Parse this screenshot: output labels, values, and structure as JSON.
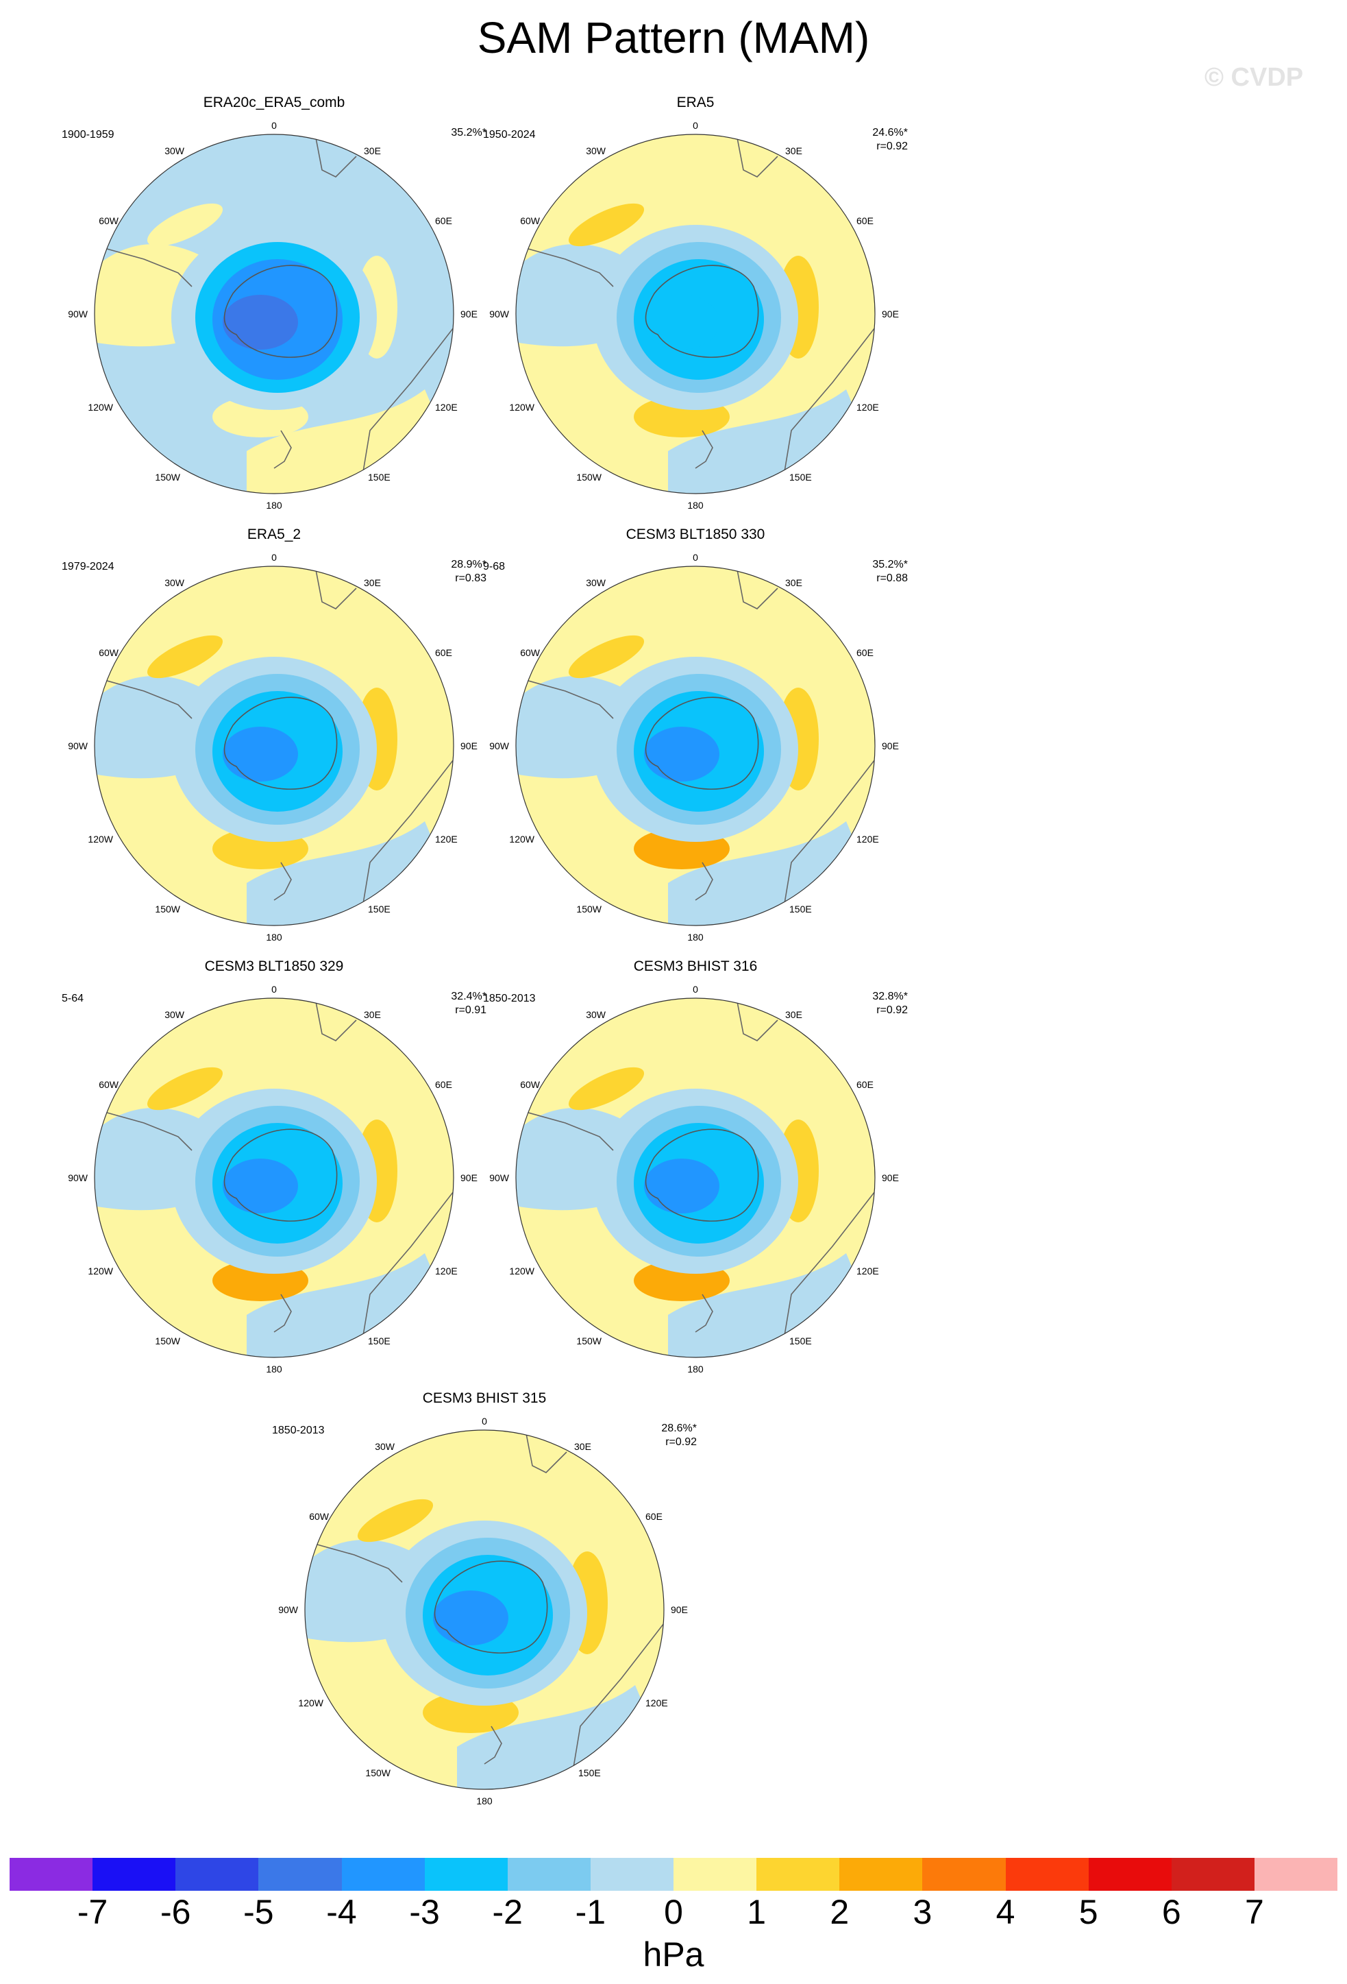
{
  "title": "SAM Pattern (MAM)",
  "watermark": "© CVDP",
  "colors": {
    "ocean_map_neg1": "#b4dcf0",
    "neutral_pos0": "#fdf6a2"
  },
  "panels": [
    {
      "title": "ERA20c_ERA5_comb",
      "period": "1900-1959",
      "pct": "35.2%*",
      "r": ""
    },
    {
      "title": "ERA5",
      "period": "1950-2024",
      "pct": "24.6%*",
      "r": "r=0.92"
    },
    {
      "title": "ERA5_2",
      "period": "1979-2024",
      "pct": "28.9%*",
      "r": "r=0.83"
    },
    {
      "title": "CESM3 BLT1850 330",
      "period": "9-68",
      "pct": "35.2%*",
      "r": "r=0.88"
    },
    {
      "title": "CESM3 BLT1850 329",
      "period": "5-64",
      "pct": "32.4%*",
      "r": "r=0.91"
    },
    {
      "title": "CESM3 BHIST 316",
      "period": "1850-2013",
      "pct": "32.8%*",
      "r": "r=0.92"
    },
    {
      "title": "CESM3 BHIST 315",
      "period": "1850-2013",
      "pct": "28.6%*",
      "r": "r=0.92"
    }
  ],
  "map_labels": {
    "top": "0",
    "bottom": "180",
    "left": "90W",
    "right": "90E",
    "ul1": "30W",
    "ul2": "60W",
    "ur1": "30E",
    "ur2": "60E",
    "ll1": "120W",
    "ll2": "150W",
    "lr1": "120E",
    "lr2": "150E"
  },
  "colorbar": {
    "colors": [
      "#8b2be2",
      "#1a10f5",
      "#2e46e6",
      "#3b78e8",
      "#2196ff",
      "#0ac3fb",
      "#7ccbf0",
      "#b4dcf0",
      "#fdf6a2",
      "#fdd530",
      "#fcaa08",
      "#fc7a0a",
      "#fb3a0c",
      "#e80c0c",
      "#d2201c",
      "#fbb4b4"
    ],
    "labels": [
      "-7",
      "-6",
      "-5",
      "-4",
      "-3",
      "-2",
      "-1",
      "0",
      "1",
      "2",
      "3",
      "4",
      "5",
      "6",
      "7"
    ],
    "unit": "hPa"
  }
}
